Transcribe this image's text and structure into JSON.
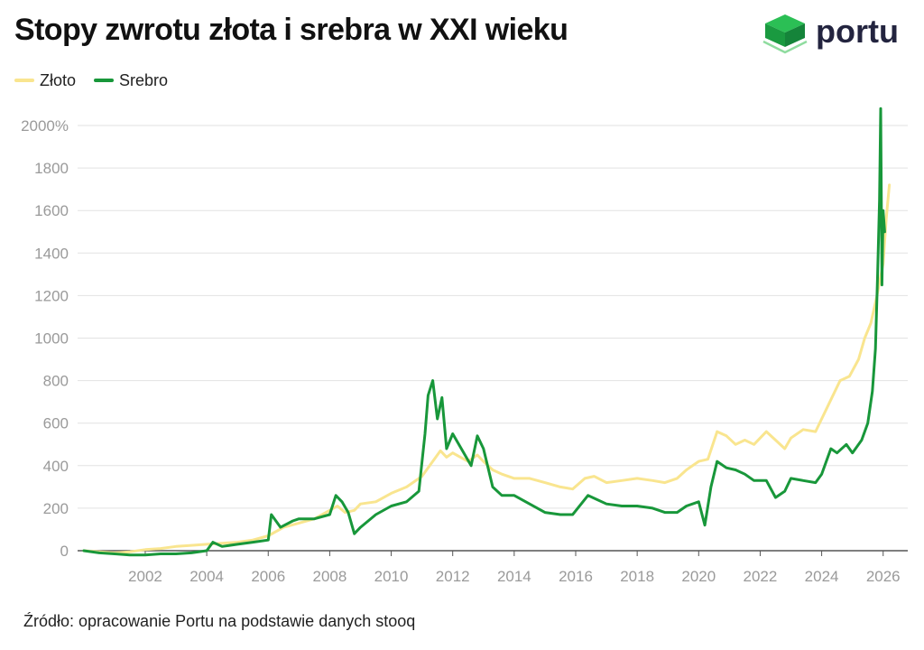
{
  "title": "Stopy zwrotu złota i srebra w XXI wieku",
  "logo": {
    "text": "portu",
    "icon": "portu-cube-icon"
  },
  "source": "Źródło: opracowanie Portu na podstawie danych stooq",
  "colors": {
    "gold": "#f9e58f",
    "silver": "#18973a",
    "grid": "#e2e2e2",
    "axis_text": "#9a9a9a",
    "logo_green": "#22a84a"
  },
  "chart_data": {
    "type": "line",
    "title": "Stopy zwrotu złota i srebra w XXI wieku",
    "xlabel": "",
    "ylabel": "",
    "xlim": [
      1999.8,
      2026.8
    ],
    "ylim": [
      0,
      2000
    ],
    "y_ticks": [
      0,
      200,
      400,
      600,
      800,
      1000,
      1200,
      1400,
      1600,
      1800,
      2000
    ],
    "y_tick_labels": [
      "0",
      "200",
      "400",
      "600",
      "800",
      "1000",
      "1200",
      "1400",
      "1600",
      "1800",
      "2000%"
    ],
    "x_ticks": [
      2002,
      2004,
      2006,
      2008,
      2010,
      2012,
      2014,
      2016,
      2018,
      2020,
      2022,
      2024,
      2026
    ],
    "x_tick_labels": [
      "2002",
      "2004",
      "2006",
      "2008",
      "2010",
      "2012",
      "2014",
      "2016",
      "2018",
      "2020",
      "2022",
      "2024",
      "2026"
    ],
    "grid": "horizontal",
    "legend_position": "top-left",
    "series": [
      {
        "name": "Złoto",
        "x": [
          2000.0,
          2000.5,
          2001.0,
          2001.5,
          2002.0,
          2002.5,
          2003.0,
          2003.5,
          2004.0,
          2004.5,
          2005.0,
          2005.5,
          2006.0,
          2006.5,
          2007.0,
          2007.5,
          2008.0,
          2008.25,
          2008.5,
          2008.8,
          2009.0,
          2009.5,
          2010.0,
          2010.5,
          2011.0,
          2011.3,
          2011.6,
          2011.8,
          2012.0,
          2012.5,
          2012.8,
          2013.0,
          2013.3,
          2013.6,
          2014.0,
          2014.5,
          2015.0,
          2015.5,
          2015.9,
          2016.3,
          2016.6,
          2017.0,
          2017.5,
          2018.0,
          2018.5,
          2018.9,
          2019.3,
          2019.6,
          2020.0,
          2020.3,
          2020.6,
          2020.9,
          2021.2,
          2021.5,
          2021.8,
          2022.2,
          2022.5,
          2022.8,
          2023.0,
          2023.4,
          2023.8,
          2024.0,
          2024.3,
          2024.6,
          2024.9,
          2025.2,
          2025.4,
          2025.6,
          2025.8,
          2026.0,
          2026.1,
          2026.2
        ],
        "values": [
          0,
          -5,
          -10,
          -5,
          5,
          10,
          20,
          25,
          30,
          35,
          40,
          50,
          70,
          110,
          130,
          150,
          190,
          210,
          180,
          190,
          220,
          230,
          270,
          300,
          350,
          410,
          470,
          440,
          460,
          420,
          450,
          420,
          380,
          360,
          340,
          340,
          320,
          300,
          290,
          340,
          350,
          320,
          330,
          340,
          330,
          320,
          340,
          380,
          420,
          430,
          560,
          540,
          500,
          520,
          500,
          560,
          520,
          480,
          530,
          570,
          560,
          620,
          710,
          800,
          820,
          900,
          1000,
          1070,
          1200,
          1350,
          1560,
          1720
        ]
      },
      {
        "name": "Srebro",
        "x": [
          2000.0,
          2000.5,
          2001.0,
          2001.5,
          2002.0,
          2002.5,
          2003.0,
          2003.5,
          2004.0,
          2004.2,
          2004.5,
          2005.0,
          2005.5,
          2006.0,
          2006.1,
          2006.4,
          2006.8,
          2007.0,
          2007.5,
          2008.0,
          2008.2,
          2008.4,
          2008.6,
          2008.8,
          2009.0,
          2009.5,
          2010.0,
          2010.5,
          2010.9,
          2011.1,
          2011.2,
          2011.35,
          2011.5,
          2011.65,
          2011.8,
          2012.0,
          2012.4,
          2012.6,
          2012.8,
          2013.0,
          2013.3,
          2013.6,
          2014.0,
          2014.5,
          2015.0,
          2015.5,
          2015.9,
          2016.4,
          2016.7,
          2017.0,
          2017.5,
          2018.0,
          2018.5,
          2018.9,
          2019.3,
          2019.6,
          2020.0,
          2020.2,
          2020.4,
          2020.6,
          2020.9,
          2021.2,
          2021.5,
          2021.8,
          2022.2,
          2022.5,
          2022.8,
          2023.0,
          2023.4,
          2023.8,
          2024.0,
          2024.3,
          2024.5,
          2024.8,
          2025.0,
          2025.3,
          2025.5,
          2025.65,
          2025.75,
          2025.82,
          2025.88,
          2025.92,
          2025.96,
          2026.0,
          2026.05
        ],
        "values": [
          0,
          -10,
          -15,
          -20,
          -20,
          -15,
          -15,
          -10,
          0,
          40,
          20,
          30,
          40,
          50,
          170,
          110,
          140,
          150,
          150,
          170,
          260,
          230,
          180,
          80,
          110,
          170,
          210,
          230,
          280,
          550,
          730,
          800,
          620,
          720,
          480,
          550,
          450,
          400,
          540,
          480,
          300,
          260,
          260,
          220,
          180,
          170,
          170,
          260,
          240,
          220,
          210,
          210,
          200,
          180,
          180,
          210,
          230,
          120,
          300,
          420,
          390,
          380,
          360,
          330,
          330,
          250,
          280,
          340,
          330,
          320,
          360,
          480,
          460,
          500,
          460,
          520,
          600,
          750,
          950,
          1300,
          1650,
          2080,
          1250,
          1600,
          1500
        ]
      }
    ]
  }
}
